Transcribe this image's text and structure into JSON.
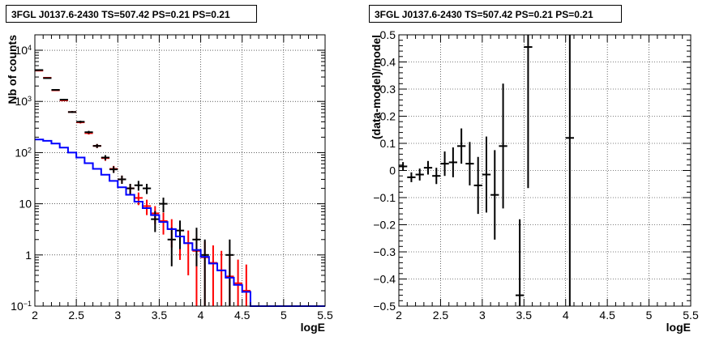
{
  "chart_data": [
    {
      "type": "line",
      "title": "3FGL J0137.6-2430 TS=507.42 PS=0.21 PS=0.21",
      "xlabel": "logE",
      "ylabel": "Nb of counts",
      "xlim": [
        2,
        5.5
      ],
      "ylim": [
        0.1,
        20000
      ],
      "yscale": "log",
      "grid": true,
      "x_ticks": [
        "2",
        "2.5",
        "3",
        "3.5",
        "4",
        "4.5",
        "5",
        "5.5"
      ],
      "y_ticks": [
        "10^{-1}",
        "1",
        "10",
        "10^{2}",
        "10^{3}",
        "10^{4}"
      ],
      "series": [
        {
          "color": "#ff0000",
          "style": "points",
          "points": [
            {
              "x": 2.05,
              "y": 4000,
              "err": 60
            },
            {
              "x": 2.15,
              "y": 2900,
              "err": 50
            },
            {
              "x": 2.25,
              "y": 1650,
              "err": 40
            },
            {
              "x": 2.35,
              "y": 1050,
              "err": 30
            },
            {
              "x": 2.45,
              "y": 620,
              "err": 25
            },
            {
              "x": 2.55,
              "y": 390,
              "err": 20
            },
            {
              "x": 2.65,
              "y": 240,
              "err": 15
            },
            {
              "x": 2.75,
              "y": 135,
              "err": 12
            },
            {
              "x": 2.85,
              "y": 78,
              "err": 9
            },
            {
              "x": 2.95,
              "y": 48,
              "err": 7
            },
            {
              "x": 3.05,
              "y": 30,
              "err": 5.5
            },
            {
              "x": 3.15,
              "y": 20,
              "err": 4.5
            },
            {
              "x": 3.25,
              "y": 13,
              "err": 3.6
            },
            {
              "x": 3.35,
              "y": 9,
              "err": 3
            },
            {
              "x": 3.45,
              "y": 6.5,
              "err": 2.5
            },
            {
              "x": 3.55,
              "y": 4.6,
              "err": 2.1
            },
            {
              "x": 3.65,
              "y": 3.2,
              "err": 1.8
            },
            {
              "x": 3.75,
              "y": 2.3,
              "err": 1.5
            },
            {
              "x": 3.85,
              "y": 1.7,
              "err": 1.3
            },
            {
              "x": 3.95,
              "y": 1.2,
              "err": 1.1
            },
            {
              "x": 4.05,
              "y": 0.9,
              "err": 0.95
            },
            {
              "x": 4.15,
              "y": 0.7,
              "err": 0.84
            },
            {
              "x": 4.25,
              "y": 0.5,
              "err": 0.7
            },
            {
              "x": 4.35,
              "y": 0.38,
              "err": 0.62
            },
            {
              "x": 4.45,
              "y": 0.28,
              "err": 0.53
            },
            {
              "x": 4.55,
              "y": 0.2,
              "err": 0.45
            }
          ]
        },
        {
          "color": "#000000",
          "style": "points",
          "points": [
            {
              "x": 2.05,
              "y": 4100,
              "err": 64
            },
            {
              "x": 2.15,
              "y": 2850,
              "err": 53
            },
            {
              "x": 2.25,
              "y": 1680,
              "err": 41
            },
            {
              "x": 2.35,
              "y": 1080,
              "err": 33
            },
            {
              "x": 2.45,
              "y": 620,
              "err": 25
            },
            {
              "x": 2.55,
              "y": 400,
              "err": 20
            },
            {
              "x": 2.65,
              "y": 250,
              "err": 16
            },
            {
              "x": 2.75,
              "y": 135,
              "err": 12
            },
            {
              "x": 2.85,
              "y": 80,
              "err": 9
            },
            {
              "x": 2.95,
              "y": 47,
              "err": 7
            },
            {
              "x": 3.05,
              "y": 30,
              "err": 5.5
            },
            {
              "x": 3.15,
              "y": 20,
              "err": 4.5
            },
            {
              "x": 3.25,
              "y": 23,
              "err": 5
            },
            {
              "x": 3.35,
              "y": 20,
              "err": 4.5
            },
            {
              "x": 3.45,
              "y": 5,
              "err": 2.2
            },
            {
              "x": 3.55,
              "y": 10,
              "err": 3.2
            },
            {
              "x": 3.65,
              "y": 2,
              "err": 1.4
            },
            {
              "x": 3.75,
              "y": 3,
              "err": 1.7
            },
            {
              "x": 3.95,
              "y": 2,
              "err": 1.4
            },
            {
              "x": 4.05,
              "y": 1,
              "err": 1
            },
            {
              "x": 4.35,
              "y": 1,
              "err": 1
            }
          ]
        },
        {
          "color": "#0000ff",
          "style": "step",
          "edges": [
            2.0,
            2.1,
            2.2,
            2.3,
            2.4,
            2.5,
            2.6,
            2.7,
            2.8,
            2.9,
            3.0,
            3.1,
            3.2,
            3.3,
            3.4,
            3.5,
            3.6,
            3.7,
            3.8,
            3.9,
            4.0,
            4.1,
            4.2,
            4.3,
            4.4,
            4.5,
            4.6,
            5.5
          ],
          "values": [
            180,
            170,
            150,
            125,
            100,
            80,
            62,
            48,
            37,
            28,
            21,
            15,
            11,
            8.2,
            6,
            4.4,
            3.2,
            2.3,
            1.7,
            1.25,
            0.92,
            0.68,
            0.5,
            0.36,
            0.26,
            0.19,
            0.1
          ]
        }
      ]
    },
    {
      "type": "scatter",
      "title": "3FGL J0137.6-2430 TS=507.42 PS=0.21 PS=0.21",
      "xlabel": "logE",
      "ylabel": "(data-model)/model",
      "xlim": [
        2,
        5.5
      ],
      "ylim": [
        -0.5,
        0.5
      ],
      "grid": true,
      "x_ticks": [
        "2",
        "2.5",
        "3",
        "3.5",
        "4",
        "4.5",
        "5",
        "5.5"
      ],
      "y_ticks": [
        "−0.5",
        "−0.4",
        "−0.3",
        "−0.2",
        "−0.1",
        "0",
        "0.1",
        "0.2",
        "0.3",
        "0.4",
        "0.5"
      ],
      "series": [
        {
          "color": "#000000",
          "points": [
            {
              "x": 2.05,
              "y": 0.015,
              "err": 0.016
            },
            {
              "x": 2.15,
              "y": -0.025,
              "err": 0.018
            },
            {
              "x": 2.25,
              "y": -0.015,
              "err": 0.022
            },
            {
              "x": 2.35,
              "y": 0.01,
              "err": 0.025
            },
            {
              "x": 2.45,
              "y": -0.02,
              "err": 0.03
            },
            {
              "x": 2.55,
              "y": 0.025,
              "err": 0.045
            },
            {
              "x": 2.65,
              "y": 0.03,
              "err": 0.055
            },
            {
              "x": 2.75,
              "y": 0.09,
              "err": 0.065
            },
            {
              "x": 2.85,
              "y": 0.025,
              "err": 0.08
            },
            {
              "x": 2.95,
              "y": -0.055,
              "err": 0.105
            },
            {
              "x": 3.05,
              "y": -0.015,
              "err": 0.14
            },
            {
              "x": 3.15,
              "y": -0.09,
              "err": 0.165
            },
            {
              "x": 3.25,
              "y": 0.09,
              "err": 0.23
            },
            {
              "x": 3.45,
              "y": -0.46,
              "err": 0.28
            },
            {
              "x": 3.55,
              "y": 0.455,
              "err": 0.52
            },
            {
              "x": 4.05,
              "y": 0.12,
              "err": 0.9
            }
          ]
        }
      ]
    }
  ]
}
